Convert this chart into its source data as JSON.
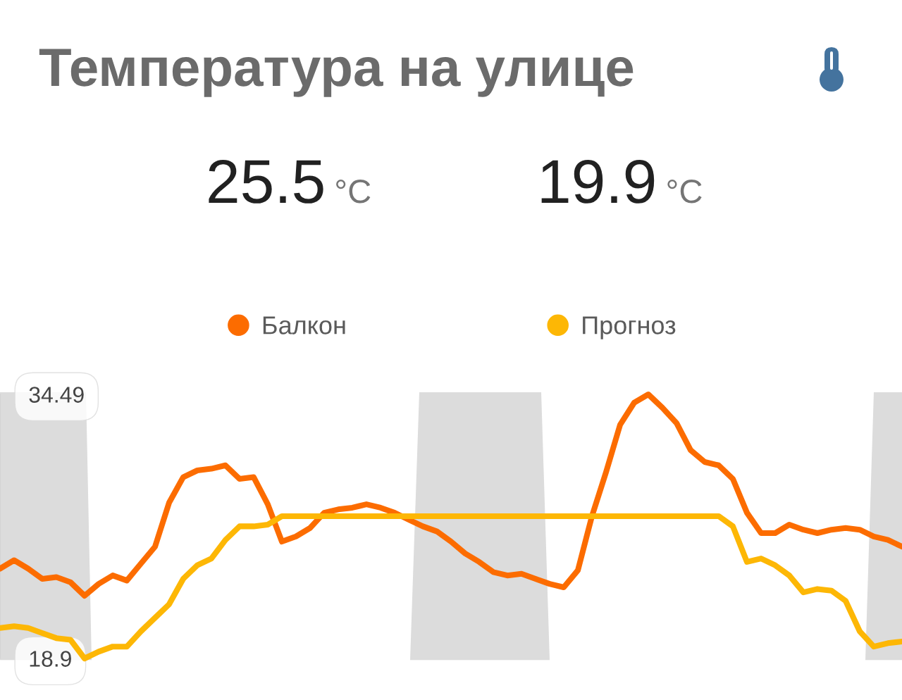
{
  "chart_data": {
    "type": "line",
    "title": "Температура на улице",
    "annotations": [
      "25.5",
      "°C",
      "19.9",
      "°C"
    ],
    "categories": [
      null,
      null,
      null,
      null,
      null,
      null,
      null,
      null,
      null,
      null,
      null,
      null,
      null,
      null,
      null,
      null,
      null,
      null,
      null,
      null,
      null,
      null,
      null,
      null,
      null,
      null,
      null,
      null,
      null,
      null,
      null,
      null,
      null,
      null,
      null,
      null,
      null,
      null,
      null,
      null,
      null,
      null,
      null,
      null,
      null,
      null,
      null,
      null,
      null,
      null,
      null,
      null,
      null,
      null,
      null,
      null,
      null,
      null,
      null,
      null,
      null,
      null,
      null,
      null,
      null
    ],
    "series": [
      {
        "name": "Балкон",
        "color": "#fc6c00",
        "values": [
          24.2,
          24.7,
          24.2,
          23.6,
          23.7,
          23.4,
          22.6,
          23.3,
          23.8,
          23.5,
          24.5,
          25.5,
          28.1,
          29.6,
          30.0,
          30.1,
          30.3,
          29.5,
          29.6,
          28.0,
          25.8,
          26.1,
          26.6,
          27.5,
          27.7,
          27.8,
          28.0,
          27.8,
          27.5,
          27.1,
          26.7,
          26.4,
          25.8,
          25.1,
          24.6,
          24.0,
          23.8,
          23.9,
          23.6,
          23.3,
          23.1,
          24.1,
          27.3,
          29.9,
          32.7,
          34.0,
          34.49,
          33.7,
          32.8,
          31.2,
          30.5,
          30.3,
          29.5,
          27.5,
          26.3,
          26.3,
          26.8,
          26.5,
          26.3,
          26.5,
          26.6,
          26.5,
          26.1,
          25.9,
          25.5
        ]
      },
      {
        "name": "Прогноз",
        "color": "#fdb705",
        "values": [
          20.7,
          20.8,
          20.7,
          20.4,
          20.1,
          20.0,
          18.9,
          19.3,
          19.6,
          19.6,
          20.5,
          21.3,
          22.1,
          23.6,
          24.4,
          24.8,
          25.9,
          26.7,
          26.7,
          26.8,
          27.3,
          27.3,
          27.3,
          27.3,
          27.3,
          27.3,
          27.3,
          27.3,
          27.3,
          27.3,
          27.3,
          27.3,
          27.3,
          27.3,
          27.3,
          27.3,
          27.3,
          27.3,
          27.3,
          27.3,
          27.3,
          27.3,
          27.3,
          27.3,
          27.3,
          27.3,
          27.3,
          27.3,
          27.3,
          27.3,
          27.3,
          27.3,
          26.7,
          24.6,
          24.8,
          24.4,
          23.8,
          22.8,
          23.0,
          22.9,
          22.3,
          20.5,
          19.6,
          19.8,
          19.9
        ]
      }
    ],
    "ylim": [
      18.9,
      34.49
    ],
    "yticks": [
      18.9,
      34.49
    ],
    "tick_labels": "y",
    "legend": "top"
  }
}
